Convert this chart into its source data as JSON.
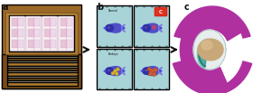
{
  "bg_color": "#ffffff",
  "label_a": "a",
  "label_b": "b",
  "label_c": "c",
  "label_fontsize": 7,
  "label_fontweight": "bold",
  "wood_dark": "#7a5520",
  "wood_mid": "#b07c30",
  "wood_light": "#c8a050",
  "table_brown": "#9a6828",
  "slide_white": "#f8f0f4",
  "slide_pink": "#e8c4d8",
  "slide_grid": "#d0a0c0",
  "cell_bg": "#a8d4d8",
  "embryo_dark": "#3030a8",
  "embryo_mid": "#5050c8",
  "embryo_light": "#8080e0",
  "annot_red": "#e03030",
  "annot_orange": "#e06020",
  "annot_yellow": "#e8c020",
  "arrow_black": "#111111",
  "recon_magenta": "#b030a0",
  "recon_pink": "#d060b8",
  "recon_white": "#e8eeee",
  "recon_teal": "#30a090",
  "recon_beige": "#c8a878",
  "recon_beige2": "#dfc090"
}
